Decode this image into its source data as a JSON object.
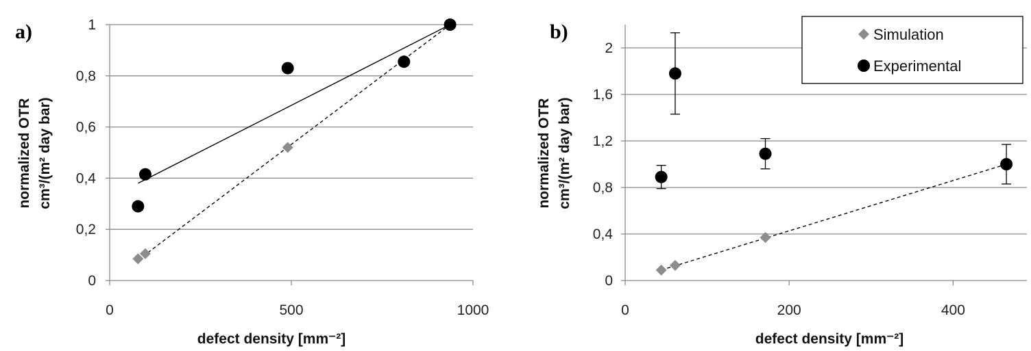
{
  "chart_data": [
    {
      "panel_label": "a)",
      "type": "scatter",
      "xlabel": "defect density [mm⁻²]",
      "ylabel_line1": "normalized OTR",
      "ylabel_line2": "cm³/(m² day bar)",
      "xlim": [
        0,
        1000
      ],
      "ylim": [
        0,
        1
      ],
      "xticks": [
        0,
        500,
        1000
      ],
      "yticks": [
        0,
        0.2,
        0.4,
        0.6,
        0.8,
        1
      ],
      "ytick_labels": [
        "0",
        "0,2",
        "0,4",
        "0,6",
        "0,8",
        "1"
      ],
      "xtick_labels": [
        "0",
        "500",
        "1000"
      ],
      "grid": "horizontal",
      "series": [
        {
          "name": "Simulation",
          "marker": "diamond",
          "color": "#8c8c8c",
          "x": [
            78,
            98,
            490,
            810,
            937
          ],
          "y": [
            0.085,
            0.105,
            0.52,
            0.86,
            1.0
          ],
          "trendline": {
            "style": "dashed",
            "x": [
              78,
              937
            ],
            "y": [
              0.08,
              1.0
            ]
          }
        },
        {
          "name": "Experimental",
          "marker": "circle",
          "color": "#000000",
          "x": [
            78,
            98,
            490,
            810,
            937
          ],
          "y": [
            0.29,
            0.415,
            0.83,
            0.855,
            1.0
          ],
          "trendline": {
            "style": "solid",
            "x": [
              78,
              937
            ],
            "y": [
              0.38,
              1.0
            ]
          }
        }
      ]
    },
    {
      "panel_label": "b)",
      "type": "scatter",
      "xlabel": "defect density [mm⁻²]",
      "ylabel_line1": "normalized OTR",
      "ylabel_line2": "cm³/(m² day bar)",
      "xlim": [
        0,
        490
      ],
      "ylim": [
        0,
        2.2
      ],
      "xticks": [
        0,
        200,
        400
      ],
      "yticks": [
        0,
        0.4,
        0.8,
        1.2,
        1.6,
        2
      ],
      "ytick_labels": [
        "0",
        "0,4",
        "0,8",
        "1,2",
        "1,6",
        "2"
      ],
      "xtick_labels": [
        "0",
        "200",
        "400"
      ],
      "grid": "horizontal",
      "legend": {
        "position": "top-right",
        "entries": [
          "Simulation",
          "Experimental"
        ]
      },
      "series": [
        {
          "name": "Simulation",
          "marker": "diamond",
          "color": "#8c8c8c",
          "x": [
            44,
            61,
            171,
            465
          ],
          "y": [
            0.09,
            0.13,
            0.37,
            1.0
          ],
          "trendline": {
            "style": "dashed",
            "x": [
              44,
              465
            ],
            "y": [
              0.09,
              1.0
            ]
          }
        },
        {
          "name": "Experimental",
          "marker": "circle",
          "color": "#000000",
          "x": [
            44,
            61,
            171,
            465
          ],
          "y": [
            0.89,
            1.78,
            1.09,
            1.0
          ],
          "yerr_low": [
            0.79,
            1.43,
            0.96,
            0.83
          ],
          "yerr_high": [
            0.99,
            2.13,
            1.22,
            1.17
          ]
        }
      ]
    }
  ]
}
